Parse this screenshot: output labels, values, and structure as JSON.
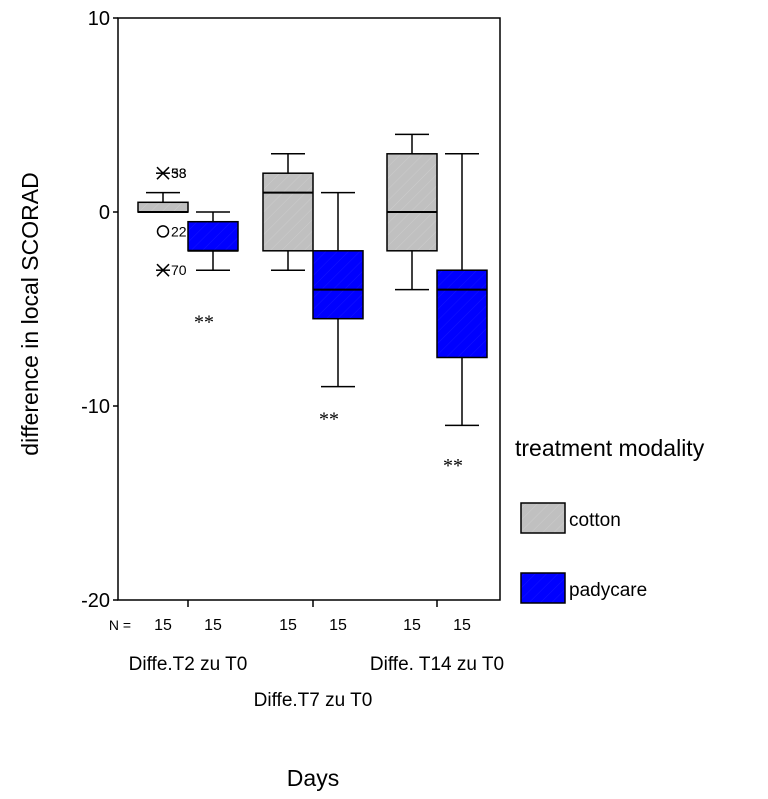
{
  "chart_data": {
    "type": "boxplot",
    "title": "",
    "xlabel": "Days",
    "ylabel": "difference in local SCORAD",
    "ylim": [
      -20,
      10
    ],
    "y_ticks": [
      "10",
      "0",
      "-10",
      "-20"
    ],
    "categories": [
      "Diffe.T2 zu T0",
      "Diffe.T7 zu T0",
      "Diffe. T14 zu T0"
    ],
    "n_prefix": "N =",
    "legend": {
      "title": "treatment modality",
      "position": "right",
      "entries": [
        {
          "name": "cotton",
          "color": "#c0c0c0"
        },
        {
          "name": "padycare",
          "color": "#0000ff"
        }
      ]
    },
    "series": [
      {
        "name": "cotton",
        "color": "#c0c0c0",
        "boxes": [
          {
            "category": "Diffe.T2 zu T0",
            "n": "15",
            "whisker_low": 0,
            "q1": 0,
            "median": 0,
            "q3": 0.5,
            "whisker_high": 1
          },
          {
            "category": "Diffe.T7 zu T0",
            "n": "15",
            "whisker_low": -3,
            "q1": -2,
            "median": 1,
            "q3": 2,
            "whisker_high": 3
          },
          {
            "category": "Diffe. T14 zu T0",
            "n": "15",
            "whisker_low": -4,
            "q1": -2,
            "median": 0,
            "q3": 3,
            "whisker_high": 4
          }
        ]
      },
      {
        "name": "padycare",
        "color": "#0000ff",
        "boxes": [
          {
            "category": "Diffe.T2 zu T0",
            "n": "15",
            "whisker_low": -3,
            "q1": -2,
            "median": -2,
            "q3": -0.5,
            "whisker_high": 0
          },
          {
            "category": "Diffe.T7 zu T0",
            "n": "15",
            "whisker_low": -9,
            "q1": -5.5,
            "median": -4,
            "q3": -2,
            "whisker_high": 1
          },
          {
            "category": "Diffe. T14 zu T0",
            "n": "15",
            "whisker_low": -11,
            "q1": -7.5,
            "median": -4,
            "q3": -3,
            "whisker_high": 3
          }
        ]
      }
    ],
    "outliers": [
      {
        "series": "cotton",
        "category": "Diffe.T2 zu T0",
        "value": 2,
        "marker": "star",
        "label": "58"
      },
      {
        "series": "cotton",
        "category": "Diffe.T2 zu T0",
        "value": 2,
        "marker": "star",
        "label": "33"
      },
      {
        "series": "cotton",
        "category": "Diffe.T2 zu T0",
        "value": -1,
        "marker": "circle",
        "label": "22"
      },
      {
        "series": "cotton",
        "category": "Diffe.T2 zu T0",
        "value": -3,
        "marker": "star",
        "label": "70"
      }
    ],
    "annotations": [
      {
        "category": "Diffe.T2 zu T0",
        "text": "**",
        "value": -5.7
      },
      {
        "category": "Diffe.T7 zu T0",
        "text": "**",
        "value": -10.7
      },
      {
        "category": "Diffe. T14 zu T0",
        "text": "**",
        "value": -13.1
      }
    ]
  }
}
